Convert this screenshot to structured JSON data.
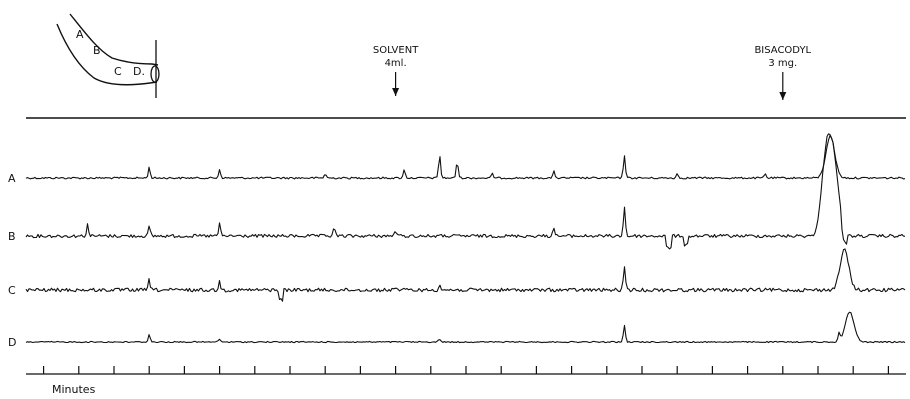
{
  "chart_data": {
    "type": "line",
    "title": "",
    "diagram_labels": [
      "A",
      "B",
      "C",
      "D."
    ],
    "annotations": [
      {
        "text_lines": [
          "SOLVENT",
          "4ml."
        ],
        "minute": 21
      },
      {
        "text_lines": [
          "BISACODYL",
          "3 mg."
        ],
        "minute": 43
      }
    ],
    "xlabel": "Minutes",
    "xlim": [
      0,
      50
    ],
    "tick_interval": 2,
    "series": [
      {
        "name": "A",
        "spikes": [
          [
            7,
            0.25
          ],
          [
            11,
            0.2
          ],
          [
            17,
            0.1
          ],
          [
            21.5,
            0.2
          ],
          [
            23.5,
            0.55
          ],
          [
            24.5,
            0.4
          ],
          [
            26.5,
            0.1
          ],
          [
            30,
            0.15
          ],
          [
            34,
            0.55
          ],
          [
            37,
            0.1
          ],
          [
            42,
            0.1
          ],
          [
            45.7,
            1.0
          ]
        ],
        "deflections": []
      },
      {
        "name": "B",
        "spikes": [
          [
            3.5,
            0.2
          ],
          [
            7,
            0.15
          ],
          [
            11,
            0.2
          ],
          [
            17.5,
            0.15
          ],
          [
            21,
            0.1
          ],
          [
            30,
            0.15
          ],
          [
            34,
            0.5
          ],
          [
            45.4,
            1.0
          ],
          [
            45.7,
            0.9
          ],
          [
            46,
            0.8
          ]
        ],
        "deflections": [
          [
            36.5,
            -0.2
          ],
          [
            37.5,
            -0.15
          ],
          [
            46.5,
            -0.2
          ]
        ]
      },
      {
        "name": "C",
        "spikes": [
          [
            7,
            0.25
          ],
          [
            11,
            0.2
          ],
          [
            21,
            0.1
          ],
          [
            23.5,
            0.15
          ],
          [
            34,
            0.55
          ],
          [
            46.5,
            1.0
          ]
        ],
        "deflections": [
          [
            14.5,
            -0.25
          ]
        ]
      },
      {
        "name": "D",
        "spikes": [
          [
            7,
            0.25
          ],
          [
            11,
            0.1
          ],
          [
            23.5,
            0.1
          ],
          [
            34,
            0.55
          ],
          [
            46.2,
            0.3
          ],
          [
            46.8,
            1.0
          ]
        ],
        "deflections": []
      }
    ]
  }
}
